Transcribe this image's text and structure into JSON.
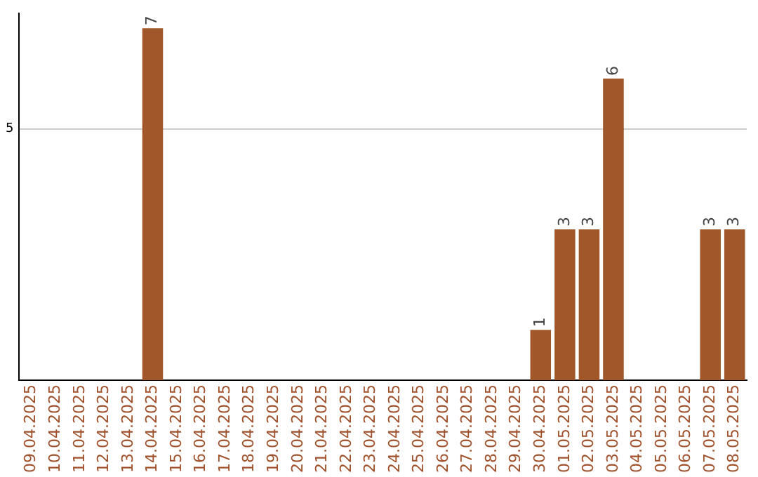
{
  "chart_data": {
    "type": "bar",
    "categories": [
      "09.04.2025",
      "10.04.2025",
      "11.04.2025",
      "12.04.2025",
      "13.04.2025",
      "14.04.2025",
      "15.04.2025",
      "16.04.2025",
      "17.04.2025",
      "18.04.2025",
      "19.04.2025",
      "20.04.2025",
      "21.04.2025",
      "22.04.2025",
      "23.04.2025",
      "24.04.2025",
      "25.04.2025",
      "26.04.2025",
      "27.04.2025",
      "28.04.2025",
      "29.04.2025",
      "30.04.2025",
      "01.05.2025",
      "02.05.2025",
      "03.05.2025",
      "04.05.2025",
      "05.05.2025",
      "06.05.2025",
      "07.05.2025",
      "08.05.2025"
    ],
    "values": [
      0,
      0,
      0,
      0,
      0,
      7,
      0,
      0,
      0,
      0,
      0,
      0,
      0,
      0,
      0,
      0,
      0,
      0,
      0,
      0,
      0,
      1,
      3,
      3,
      6,
      0,
      0,
      0,
      3,
      3
    ],
    "value_labels": [
      null,
      null,
      null,
      null,
      null,
      "7",
      null,
      null,
      null,
      null,
      null,
      null,
      null,
      null,
      null,
      null,
      null,
      null,
      null,
      null,
      null,
      "1",
      "3",
      "3",
      "6",
      null,
      null,
      null,
      "3",
      "3"
    ],
    "color": "#a0582a",
    "ylim": [
      0,
      7.3
    ],
    "yticks": [
      5
    ],
    "grid": "y",
    "legend": false
  }
}
